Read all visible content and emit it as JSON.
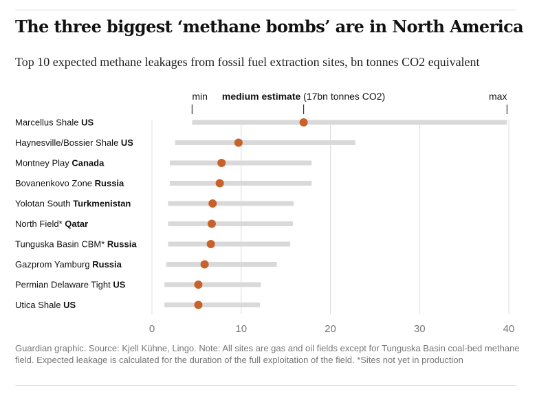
{
  "title": "The three biggest ‘methane bombs’ are in North America",
  "subtitle": "Top 10 expected methane leakages from fossil fuel extraction sites, bn tonnes CO2 equivalent",
  "footnote": "Guardian graphic. Source: Kjell Kühne, Lingo. Note: All sites are gas and oil fields except for Tunguska Basin coal-bed methane field. Expected leakage is calculated for the duration of the full exploitation of the field. *Sites not yet in production",
  "colors": {
    "range": "#d9d9d9",
    "dot": "#c8612a",
    "grid": "#dcdcdc",
    "text": "#121212",
    "muted": "#767676"
  },
  "chart_data": {
    "type": "range-dot",
    "title": "The three biggest ‘methane bombs’ are in North America",
    "xlabel": "",
    "ylabel": "",
    "xlim": [
      0,
      40
    ],
    "xticks": [
      0,
      10,
      20,
      30,
      40
    ],
    "legend": {
      "min_label": "min",
      "medium_label": "medium estimate",
      "medium_note": "(17bn tonnes CO2)",
      "max_label": "max"
    },
    "sites": [
      {
        "name": "Marcellus Shale",
        "country": "US",
        "min": 4.5,
        "medium": 17,
        "max": 39.8
      },
      {
        "name": "Haynesville/Bossier Shale",
        "country": "US",
        "min": 2.6,
        "medium": 9.7,
        "max": 22.8
      },
      {
        "name": "Montney Play",
        "country": "Canada",
        "min": 2.0,
        "medium": 7.8,
        "max": 17.9
      },
      {
        "name": "Bovanenkovo Zone",
        "country": "Russia",
        "min": 2.0,
        "medium": 7.6,
        "max": 17.9
      },
      {
        "name": "Yolotan South",
        "country": "Turkmenistan",
        "min": 1.8,
        "medium": 6.8,
        "max": 15.9
      },
      {
        "name": "North Field*",
        "country": "Qatar",
        "min": 1.8,
        "medium": 6.7,
        "max": 15.8
      },
      {
        "name": "Tunguska Basin CBM*",
        "country": "Russia",
        "min": 1.8,
        "medium": 6.6,
        "max": 15.5
      },
      {
        "name": "Gazprom Yamburg",
        "country": "Russia",
        "min": 1.6,
        "medium": 5.9,
        "max": 14.0
      },
      {
        "name": "Permian Delaware Tight",
        "country": "US",
        "min": 1.4,
        "medium": 5.2,
        "max": 12.2
      },
      {
        "name": "Utica Shale",
        "country": "US",
        "min": 1.4,
        "medium": 5.2,
        "max": 12.1
      }
    ]
  }
}
